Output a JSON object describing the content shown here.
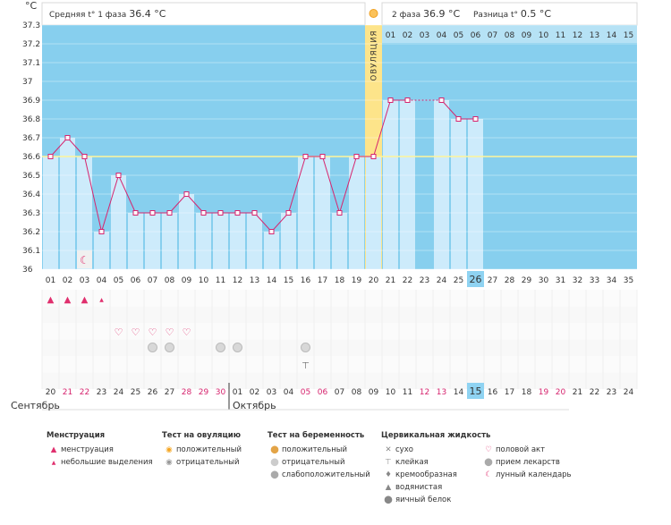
{
  "header": {
    "unit": "°C",
    "phase1_label": "Средняя t° 1 фаза",
    "phase1_value": "36.4 °C",
    "phase2_label": "2 фаза",
    "phase2_value": "36.9 °C",
    "diff_label": "Разница t°",
    "diff_value": "0.5 °C"
  },
  "ovulation_label": "ОВУЛЯЦИЯ",
  "month_labels": {
    "sep": "Сентябрь",
    "oct": "Октябрь"
  },
  "colors": {
    "sky": "#87cfee",
    "bar": "#cdebfb",
    "line": "#d6246e",
    "ovulation": "#fde48a",
    "today": "#8fd3f2",
    "red_date": "#d6246e"
  },
  "chart_data": {
    "type": "line",
    "title": "",
    "ylabel": "°C",
    "ylim": [
      36,
      37.3
    ],
    "yticks": [
      "37.3",
      "37.2",
      "37.1",
      "37",
      "36.9",
      "36.8",
      "36.7",
      "36.6",
      "36.5",
      "36.4",
      "36.3",
      "36.2",
      "36.1",
      "36"
    ],
    "coverline": 36.6,
    "cycle_days": [
      "01",
      "02",
      "03",
      "04",
      "05",
      "06",
      "07",
      "08",
      "09",
      "10",
      "11",
      "12",
      "13",
      "14",
      "15",
      "16",
      "17",
      "18",
      "19",
      "20",
      "21",
      "22",
      "23",
      "24",
      "25",
      "26",
      "27",
      "28",
      "29",
      "30",
      "31",
      "32",
      "33",
      "34",
      "35"
    ],
    "dates": [
      "20",
      "21",
      "22",
      "23",
      "24",
      "25",
      "26",
      "27",
      "28",
      "29",
      "30",
      "01",
      "02",
      "03",
      "04",
      "05",
      "06",
      "07",
      "08",
      "09",
      "10",
      "11",
      "12",
      "13",
      "14",
      "15",
      "16",
      "17",
      "18",
      "19",
      "20",
      "21",
      "22",
      "23",
      "24"
    ],
    "red_dates": [
      "21",
      "22",
      "28",
      "29",
      "30",
      "05",
      "06",
      "12",
      "13",
      "19",
      "20"
    ],
    "temps": [
      36.6,
      36.7,
      36.6,
      36.2,
      36.5,
      36.3,
      36.3,
      36.3,
      36.4,
      36.3,
      36.3,
      36.3,
      36.3,
      36.2,
      36.3,
      36.6,
      36.6,
      36.3,
      36.6,
      36.6,
      36.9,
      36.9,
      null,
      36.9,
      36.8,
      36.8
    ],
    "ovulation_day": "20",
    "phase2_days": [
      "01",
      "02",
      "03",
      "04",
      "05",
      "06",
      "07",
      "08",
      "09",
      "10",
      "11",
      "12",
      "13",
      "14",
      "15"
    ],
    "today_cycle_day": "26",
    "today_date": "15",
    "moon_day": "03",
    "menstruation_days": [
      "01",
      "02",
      "03"
    ],
    "light_spotting_days": [
      "04"
    ],
    "intercourse_days": [
      "05",
      "06",
      "07",
      "08",
      "09"
    ],
    "ovulation_test_negative_days": [
      "07",
      "08",
      "11",
      "12",
      "16"
    ],
    "sticky_days": [
      "16"
    ]
  },
  "legend": {
    "menstruation": {
      "title": "Менструация",
      "items": [
        "менструация",
        "небольшие выделения"
      ]
    },
    "ovulation_test": {
      "title": "Тест на овуляцию",
      "items": [
        "положительный",
        "отрицательный"
      ]
    },
    "pregnancy_test": {
      "title": "Тест на беременность",
      "items": [
        "положительный",
        "отрицательный",
        "слабоположительный"
      ]
    },
    "cervical": {
      "title": "Цервикальная жидкость",
      "items": [
        "сухо",
        "клейкая",
        "кремообразная",
        "водянистая",
        "яичный белок"
      ]
    },
    "other": {
      "items": [
        "половой акт",
        "прием лекарств",
        "лунный календарь"
      ]
    }
  }
}
